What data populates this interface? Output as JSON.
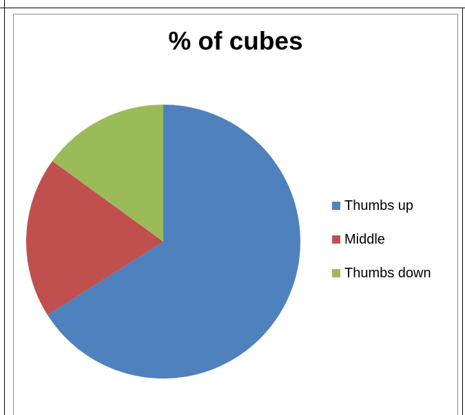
{
  "chart_data": {
    "type": "pie",
    "title": "% of cubes",
    "categories": [
      "Thumbs up",
      "Middle",
      "Thumbs down"
    ],
    "values": [
      66,
      19,
      15
    ],
    "colors": [
      "#4F81BD",
      "#C0504D",
      "#9BBB59"
    ],
    "legend_position": "right",
    "start_angle_deg": 0,
    "direction": "clockwise"
  }
}
